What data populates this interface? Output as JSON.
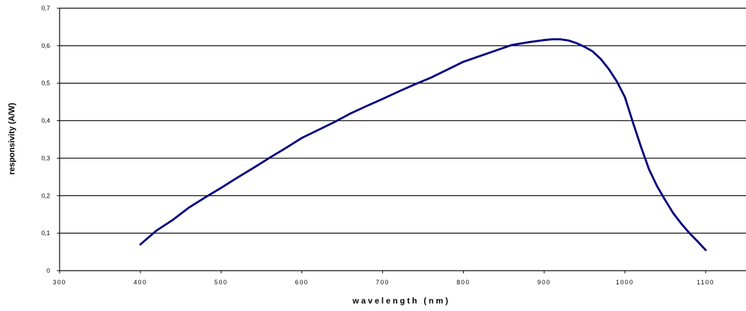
{
  "chart_data": {
    "type": "line",
    "title": "",
    "xlabel": "wavelength (nm)",
    "ylabel": "responsivity (A/W)",
    "xlim": [
      300,
      1150
    ],
    "ylim": [
      0,
      0.7
    ],
    "x_ticks": [
      "300",
      "400",
      "500",
      "600",
      "700",
      "800",
      "900",
      "1000",
      "1100"
    ],
    "y_ticks": [
      "0",
      "0,1",
      "0,2",
      "0,3",
      "0,4",
      "0,5",
      "0,6",
      "0,7"
    ],
    "grid": "horizontal",
    "legend": "none",
    "series_color": "#000080",
    "series": [
      {
        "x": [
          400,
          420,
          440,
          460,
          480,
          500,
          520,
          540,
          560,
          580,
          600,
          620,
          640,
          660,
          680,
          700,
          720,
          740,
          760,
          780,
          800,
          820,
          840,
          860,
          880,
          900,
          910,
          920,
          930,
          940,
          950,
          960,
          970,
          980,
          990,
          1000,
          1010,
          1020,
          1030,
          1040,
          1050,
          1060,
          1070,
          1080,
          1090,
          1100
        ],
        "y": [
          0.07,
          0.107,
          0.135,
          0.168,
          0.195,
          0.221,
          0.248,
          0.274,
          0.301,
          0.327,
          0.354,
          0.375,
          0.396,
          0.419,
          0.439,
          0.458,
          0.478,
          0.497,
          0.515,
          0.536,
          0.557,
          0.572,
          0.587,
          0.602,
          0.609,
          0.615,
          0.617,
          0.617,
          0.614,
          0.607,
          0.597,
          0.585,
          0.565,
          0.538,
          0.505,
          0.463,
          0.395,
          0.33,
          0.27,
          0.225,
          0.188,
          0.153,
          0.125,
          0.1,
          0.078,
          0.055
        ]
      }
    ]
  }
}
